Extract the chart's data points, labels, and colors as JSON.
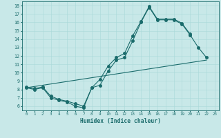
{
  "xlabel": "Humidex (Indice chaleur)",
  "bg_color": "#c8e8e8",
  "line_color": "#1a6b6b",
  "xlim": [
    -0.5,
    23.5
  ],
  "ylim": [
    5.5,
    18.5
  ],
  "xticks": [
    0,
    1,
    2,
    3,
    4,
    5,
    6,
    7,
    8,
    9,
    10,
    11,
    12,
    13,
    14,
    15,
    16,
    17,
    18,
    19,
    20,
    21,
    22,
    23
  ],
  "yticks": [
    6,
    7,
    8,
    9,
    10,
    11,
    12,
    13,
    14,
    15,
    16,
    17,
    18
  ],
  "line1_x": [
    0,
    1,
    2,
    3,
    4,
    5,
    6,
    7,
    8,
    9,
    10,
    11,
    12,
    13,
    14,
    15,
    16,
    17,
    18,
    19,
    20,
    21,
    22
  ],
  "line1_y": [
    8.2,
    8.0,
    8.2,
    7.0,
    6.7,
    6.5,
    6.0,
    5.8,
    8.2,
    8.5,
    10.2,
    11.5,
    11.8,
    13.8,
    16.0,
    17.8,
    16.3,
    16.3,
    16.3,
    15.8,
    14.5,
    13.0,
    11.8
  ],
  "line2_x": [
    0,
    1,
    2,
    3,
    4,
    5,
    6,
    7,
    8,
    9,
    10,
    11,
    12,
    13,
    14,
    15,
    16,
    17,
    18,
    19,
    20,
    21,
    22
  ],
  "line2_y": [
    8.3,
    8.1,
    8.3,
    7.2,
    6.8,
    6.6,
    6.3,
    6.0,
    8.2,
    9.2,
    10.8,
    11.8,
    12.3,
    14.4,
    16.1,
    17.9,
    16.4,
    16.4,
    16.4,
    15.9,
    14.6,
    null,
    null
  ],
  "line3_x": [
    0,
    22
  ],
  "line3_y": [
    8.2,
    11.5
  ],
  "grid_color": "#a8d8d8",
  "marker_size": 2.5,
  "lw": 0.8
}
